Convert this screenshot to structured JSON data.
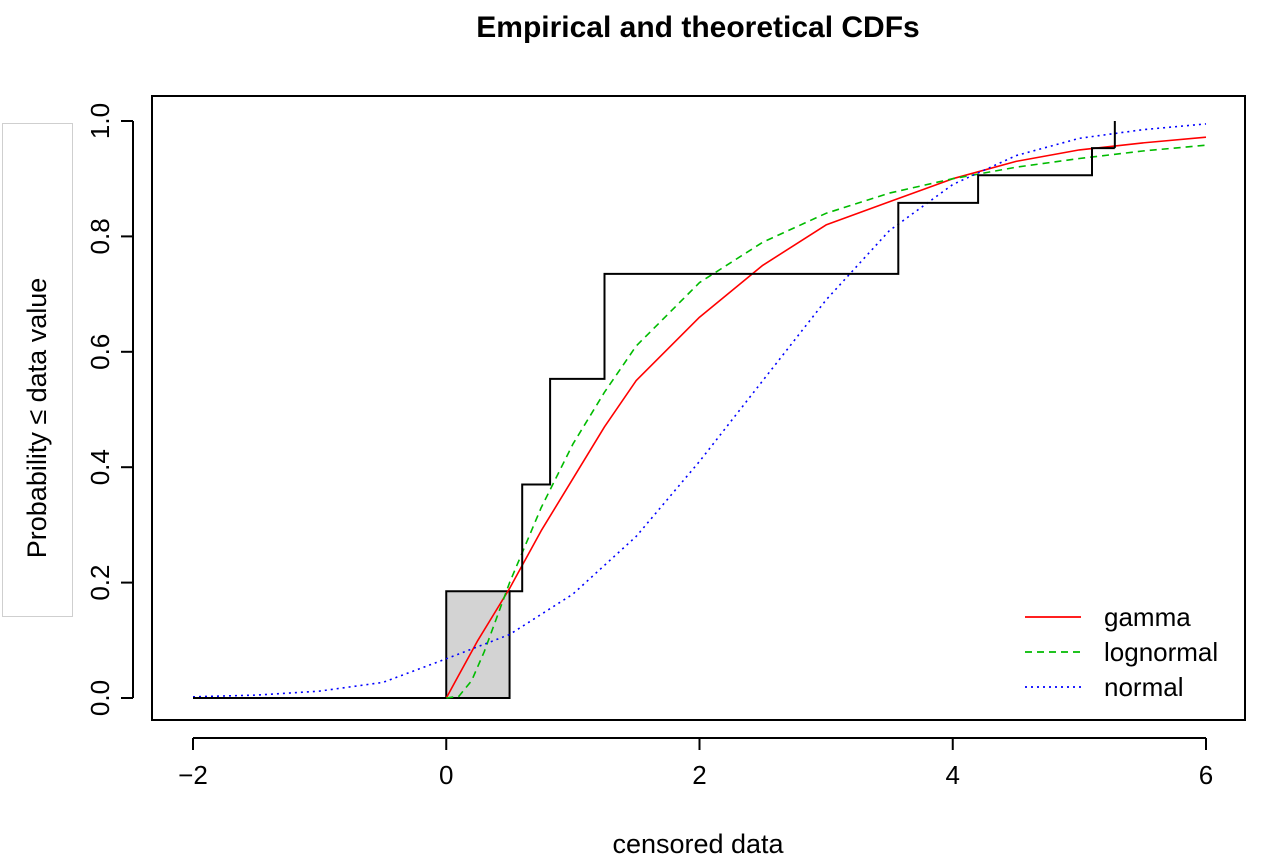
{
  "chart_data": {
    "type": "line",
    "title": "Empirical and theoretical CDFs",
    "xlabel": "censored data",
    "ylabel": "Probability ≤ data value",
    "xlim": [
      -2,
      6
    ],
    "ylim": [
      0,
      1
    ],
    "x_ticks": [
      -2,
      0,
      2,
      4,
      6
    ],
    "x_tick_labels": [
      "−2",
      "0",
      "2",
      "4",
      "6"
    ],
    "y_ticks": [
      0,
      0.2,
      0.4,
      0.6,
      0.8,
      1.0
    ],
    "y_tick_labels": [
      "0.0",
      "0.2",
      "0.4",
      "0.6",
      "0.8",
      "1.0"
    ],
    "grid": false,
    "legend_position": "bottom-right",
    "series": [
      {
        "name": "gamma",
        "color": "#ff0000",
        "dash": "solid",
        "distribution": "gamma",
        "points": [
          [
            0,
            0
          ],
          [
            0.1,
            0.04
          ],
          [
            0.25,
            0.1
          ],
          [
            0.5,
            0.19
          ],
          [
            0.75,
            0.29
          ],
          [
            1.0,
            0.38
          ],
          [
            1.25,
            0.47
          ],
          [
            1.5,
            0.55
          ],
          [
            2.0,
            0.66
          ],
          [
            2.5,
            0.75
          ],
          [
            3.0,
            0.82
          ],
          [
            3.5,
            0.86
          ],
          [
            4.0,
            0.9
          ],
          [
            4.5,
            0.93
          ],
          [
            5.0,
            0.95
          ],
          [
            5.5,
            0.962
          ],
          [
            6.0,
            0.972
          ]
        ]
      },
      {
        "name": "lognormal",
        "color": "#00bb00",
        "dash": "dashed",
        "distribution": "lognormal",
        "points": [
          [
            0,
            0
          ],
          [
            0.1,
            0.003
          ],
          [
            0.2,
            0.03
          ],
          [
            0.3,
            0.08
          ],
          [
            0.4,
            0.14
          ],
          [
            0.5,
            0.2
          ],
          [
            0.75,
            0.33
          ],
          [
            1.0,
            0.44
          ],
          [
            1.25,
            0.53
          ],
          [
            1.5,
            0.61
          ],
          [
            2.0,
            0.72
          ],
          [
            2.5,
            0.79
          ],
          [
            3.0,
            0.84
          ],
          [
            3.5,
            0.875
          ],
          [
            4.0,
            0.9
          ],
          [
            4.5,
            0.92
          ],
          [
            5.0,
            0.935
          ],
          [
            5.5,
            0.948
          ],
          [
            6.0,
            0.958
          ]
        ]
      },
      {
        "name": "normal",
        "color": "#0000ff",
        "dash": "dotted",
        "distribution": "normal",
        "points": [
          [
            -2,
            0.002
          ],
          [
            -1.5,
            0.005
          ],
          [
            -1,
            0.012
          ],
          [
            -0.5,
            0.027
          ],
          [
            0,
            0.068
          ],
          [
            0.5,
            0.11
          ],
          [
            1.0,
            0.18
          ],
          [
            1.5,
            0.28
          ],
          [
            2.0,
            0.41
          ],
          [
            2.5,
            0.55
          ],
          [
            3.0,
            0.69
          ],
          [
            3.5,
            0.81
          ],
          [
            4.0,
            0.89
          ],
          [
            4.5,
            0.94
          ],
          [
            5.0,
            0.97
          ],
          [
            5.5,
            0.985
          ],
          [
            6.0,
            0.995
          ]
        ]
      }
    ],
    "empirical_cdf": {
      "name": "empirical",
      "color": "#000000",
      "left_line": [
        [
          -2,
          0
        ],
        [
          0,
          0
        ]
      ],
      "interval_box": {
        "x": [
          0,
          0.5
        ],
        "y": [
          0,
          0.185
        ],
        "fill": "#d3d3d3"
      },
      "steps": [
        [
          0.5,
          0.185
        ],
        [
          0.6,
          0.185
        ],
        [
          0.6,
          0.37
        ],
        [
          0.82,
          0.37
        ],
        [
          0.82,
          0.553
        ],
        [
          1.25,
          0.553
        ],
        [
          1.25,
          0.735
        ],
        [
          3.57,
          0.735
        ],
        [
          3.57,
          0.858
        ],
        [
          4.2,
          0.858
        ],
        [
          4.2,
          0.906
        ],
        [
          5.1,
          0.906
        ],
        [
          5.1,
          0.953
        ],
        [
          5.28,
          0.953
        ]
      ],
      "right_censored_tick": {
        "x": 5.28,
        "y": [
          0.953,
          1.0
        ]
      }
    }
  }
}
